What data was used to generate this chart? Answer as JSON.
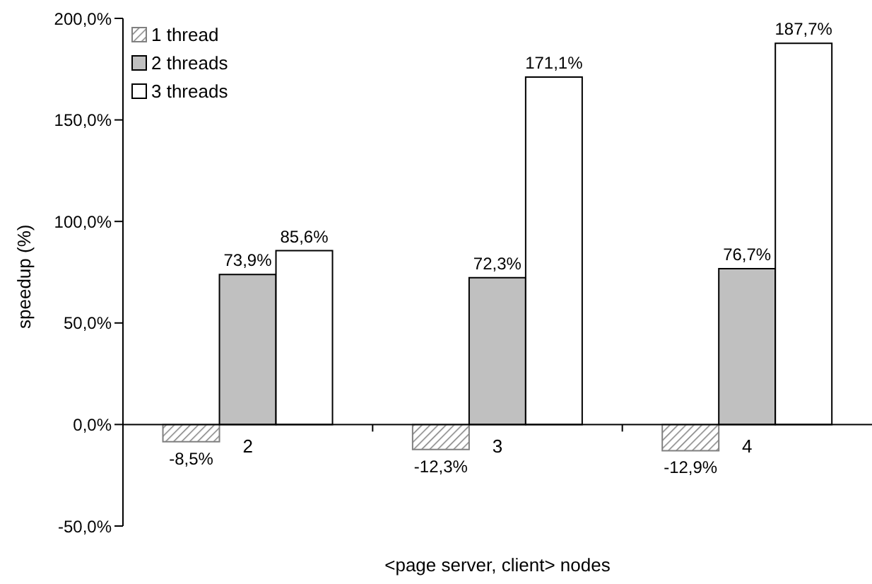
{
  "chart_data": {
    "type": "bar",
    "xlabel": "<page server, client> nodes",
    "ylabel": "speedup (%)",
    "categories": [
      "2",
      "3",
      "4"
    ],
    "series": [
      {
        "name": "1 thread",
        "color": "#808080",
        "values": [
          -8.5,
          -12.3,
          -12.9
        ],
        "value_labels": [
          "-8,5%",
          "-12,3%",
          "-12,9%"
        ]
      },
      {
        "name": "2 threads",
        "color": "#c0c0c0",
        "values": [
          73.9,
          72.3,
          76.7
        ],
        "value_labels": [
          "73,9%",
          "72,3%",
          "76,7%"
        ]
      },
      {
        "name": "3 threads",
        "color": "#ffffff",
        "values": [
          85.6,
          171.1,
          187.7
        ],
        "value_labels": [
          "85,6%",
          "171,1%",
          "187,7%"
        ]
      }
    ],
    "ylim": [
      -50,
      200
    ],
    "yticks": [
      {
        "value": -50,
        "label": "-50,0%"
      },
      {
        "value": 0,
        "label": "0,0%"
      },
      {
        "value": 50,
        "label": "50,0%"
      },
      {
        "value": 100,
        "label": "100,0%"
      },
      {
        "value": 150,
        "label": "150,0%"
      },
      {
        "value": 200,
        "label": "200,0%"
      }
    ],
    "grid": false,
    "legend": "top left"
  }
}
